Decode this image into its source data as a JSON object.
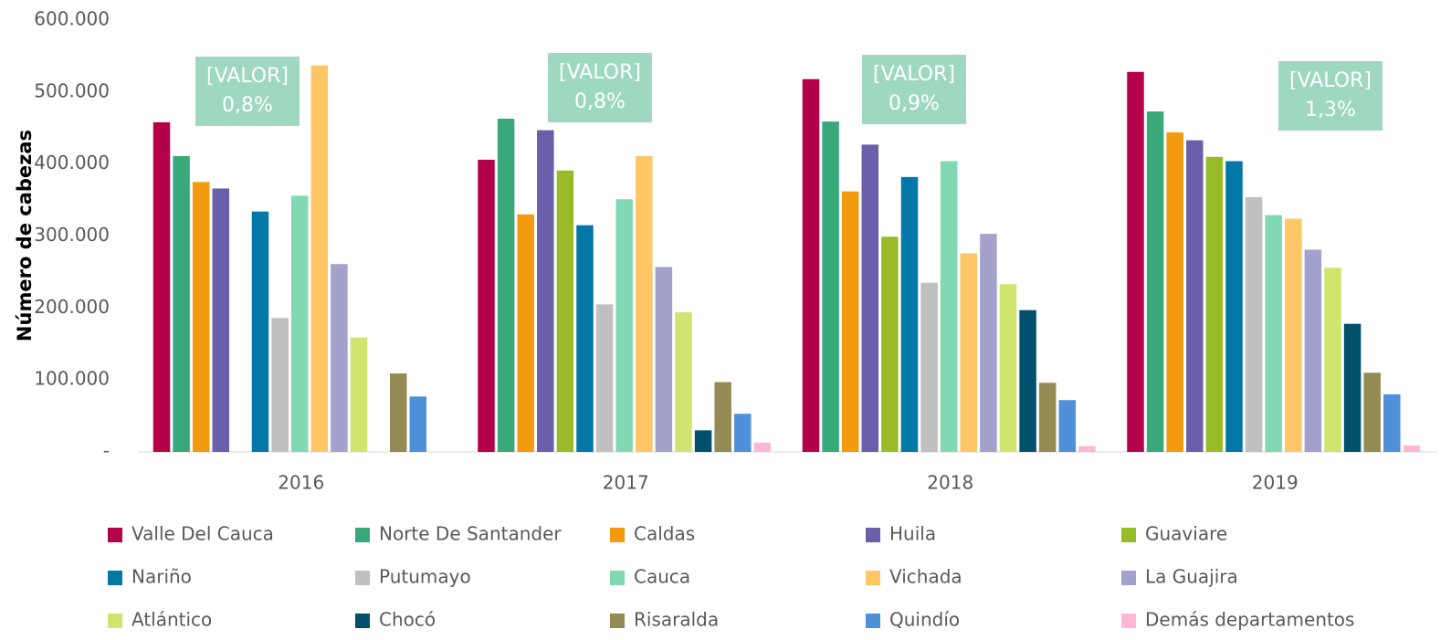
{
  "chart_data": {
    "type": "bar",
    "y_label": "Número de cabezas",
    "categories": [
      "2016",
      "2017",
      "2018",
      "2019"
    ],
    "ylim": [
      0,
      600000
    ],
    "yticks": [
      {
        "value": 0,
        "label": "-"
      },
      {
        "value": 100000,
        "label": "100.000"
      },
      {
        "value": 200000,
        "label": "200.000"
      },
      {
        "value": 300000,
        "label": "300.000"
      },
      {
        "value": 400000,
        "label": "400.000"
      },
      {
        "value": 500000,
        "label": "500.000"
      },
      {
        "value": 600000,
        "label": "600.000"
      }
    ],
    "grid": false,
    "legend": "bottom",
    "annotations": [
      {
        "label": "[VALOR]",
        "text": "0,8%"
      },
      {
        "label": "[VALOR]",
        "text": "0,8%"
      },
      {
        "label": "[VALOR]",
        "text": "0,9%"
      },
      {
        "label": "[VALOR]",
        "text": "1,3%"
      }
    ],
    "series": [
      {
        "name": "Valle Del Cauca",
        "color": "#b5004a",
        "values": [
          458000,
          406000,
          518000,
          528000
        ]
      },
      {
        "name": "Norte De Santander",
        "color": "#3aa97a",
        "values": [
          411000,
          463000,
          459000,
          473000
        ]
      },
      {
        "name": "Caldas",
        "color": "#f39a0e",
        "values": [
          375000,
          330000,
          362000,
          444000
        ]
      },
      {
        "name": "Huila",
        "color": "#6a5fa8",
        "values": [
          366000,
          447000,
          427000,
          433000
        ]
      },
      {
        "name": "Guaviare",
        "color": "#98bc27",
        "values": [
          null,
          391000,
          299000,
          410000
        ]
      },
      {
        "name": "Nariño",
        "color": "#0377a6",
        "values": [
          334000,
          315000,
          382000,
          404000
        ]
      },
      {
        "name": "Putumayo",
        "color": "#c0c0c0",
        "values": [
          186000,
          205000,
          235000,
          354000
        ]
      },
      {
        "name": "Cauca",
        "color": "#80d9b2",
        "values": [
          356000,
          351000,
          404000,
          329000
        ]
      },
      {
        "name": "Vichada",
        "color": "#ffc666",
        "values": [
          537000,
          411000,
          276000,
          324000
        ]
      },
      {
        "name": "La Guajira",
        "color": "#a4a1cc",
        "values": [
          261000,
          257000,
          303000,
          281000
        ]
      },
      {
        "name": "Atlántico",
        "color": "#cfe56f",
        "values": [
          159000,
          194000,
          233000,
          256000
        ]
      },
      {
        "name": "Chocó",
        "color": "#00506e",
        "values": [
          null,
          30000,
          197000,
          178000
        ]
      },
      {
        "name": "Risaralda",
        "color": "#948a54",
        "values": [
          109000,
          97000,
          96000,
          110000
        ]
      },
      {
        "name": "Quindío",
        "color": "#4f90d9",
        "values": [
          77000,
          53000,
          72000,
          80000
        ]
      },
      {
        "name": "Demás departamentos",
        "color": "#ffb8d4",
        "values": [
          null,
          13000,
          8000,
          9000
        ]
      }
    ]
  }
}
